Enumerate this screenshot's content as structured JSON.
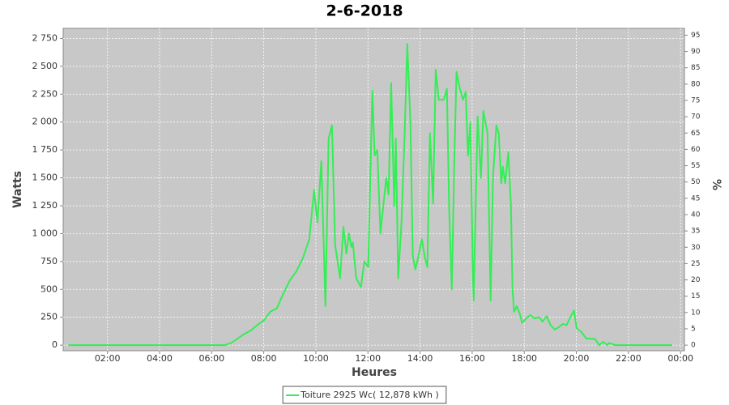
{
  "chart_data": {
    "type": "line",
    "title": "2-6-2018",
    "x_label": "Heures",
    "y_label": "Watts",
    "y2_label": "%",
    "x": [
      0.5,
      6.5,
      6.75,
      7.0,
      7.25,
      7.5,
      7.75,
      8.0,
      8.25,
      8.5,
      8.75,
      9.0,
      9.25,
      9.5,
      9.75,
      9.93,
      10.06,
      10.21,
      10.37,
      10.49,
      10.62,
      10.74,
      10.93,
      11.06,
      11.17,
      11.27,
      11.36,
      11.42,
      11.55,
      11.73,
      11.86,
      12.01,
      12.17,
      12.26,
      12.36,
      12.48,
      12.7,
      12.79,
      12.89,
      13.01,
      13.07,
      13.16,
      13.29,
      13.41,
      13.51,
      13.63,
      13.72,
      13.82,
      13.94,
      14.07,
      14.19,
      14.28,
      14.38,
      14.5,
      14.6,
      14.72,
      14.91,
      15.03,
      15.12,
      15.22,
      15.31,
      15.4,
      15.53,
      15.65,
      15.75,
      15.84,
      15.93,
      16.03,
      16.06,
      16.15,
      16.21,
      16.34,
      16.43,
      16.59,
      16.71,
      16.8,
      16.93,
      17.02,
      17.12,
      17.18,
      17.27,
      17.39,
      17.49,
      17.55,
      17.61,
      17.71,
      17.83,
      17.92,
      18.08,
      18.23,
      18.39,
      18.58,
      18.7,
      18.86,
      19.01,
      19.17,
      19.32,
      19.48,
      19.63,
      19.79,
      19.91,
      20.01,
      20.19,
      20.38,
      20.72,
      20.88,
      21.03,
      21.19,
      21.25,
      21.5,
      23.68
    ],
    "series": [
      {
        "name": "Toiture 2925 Wc( 12,878 kWh )",
        "color": "#33ee55",
        "values": [
          0,
          0,
          20,
          60,
          100,
          130,
          180,
          220,
          300,
          330,
          460,
          580,
          660,
          780,
          950,
          1390,
          1100,
          1650,
          350,
          1850,
          1970,
          900,
          600,
          1060,
          820,
          1000,
          880,
          920,
          600,
          520,
          750,
          700,
          2280,
          1700,
          1750,
          1000,
          1500,
          1350,
          2350,
          1250,
          1850,
          600,
          1100,
          1900,
          2700,
          2000,
          800,
          680,
          800,
          950,
          780,
          700,
          1900,
          1270,
          2470,
          2200,
          2200,
          2300,
          1200,
          500,
          1600,
          2450,
          2300,
          2200,
          2270,
          1700,
          2000,
          600,
          400,
          1400,
          2050,
          1500,
          2100,
          1900,
          400,
          1500,
          1970,
          1900,
          1450,
          1600,
          1450,
          1730,
          1250,
          500,
          300,
          350,
          280,
          200,
          240,
          270,
          240,
          250,
          210,
          260,
          180,
          140,
          160,
          190,
          180,
          260,
          310,
          150,
          120,
          60,
          55,
          0,
          30,
          0,
          20,
          0,
          0
        ]
      }
    ],
    "xlim": [
      0.3,
      24.15
    ],
    "xticks": [
      {
        "value": 2,
        "label": "02:00"
      },
      {
        "value": 4,
        "label": "04:00"
      },
      {
        "value": 6,
        "label": "06:00"
      },
      {
        "value": 8,
        "label": "08:00"
      },
      {
        "value": 10,
        "label": "10:00"
      },
      {
        "value": 12,
        "label": "12:00"
      },
      {
        "value": 14,
        "label": "14:00"
      },
      {
        "value": 16,
        "label": "16:00"
      },
      {
        "value": 18,
        "label": "18:00"
      },
      {
        "value": 20,
        "label": "20:00"
      },
      {
        "value": 22,
        "label": "22:00"
      },
      {
        "value": 24,
        "label": "00:00"
      }
    ],
    "ylim": [
      -50,
      2840
    ],
    "yticks": [
      0,
      250,
      500,
      750,
      {
        "value": 1000,
        "label": "1 000"
      },
      {
        "value": 1250,
        "label": "1 250"
      },
      {
        "value": 1500,
        "label": "1 500"
      },
      {
        "value": 1750,
        "label": "1 750"
      },
      {
        "value": 2000,
        "label": "2 000"
      },
      {
        "value": 2250,
        "label": "2 250"
      },
      {
        "value": 2500,
        "label": "2 500"
      },
      {
        "value": 2750,
        "label": "2 750"
      }
    ],
    "y2lim": [
      -1.71,
      97.09
    ],
    "y2ticks": [
      0,
      5,
      10,
      15,
      20,
      25,
      30,
      35,
      40,
      45,
      50,
      55,
      60,
      65,
      70,
      75,
      80,
      85,
      90,
      95
    ],
    "grid": true,
    "legend": "bottom"
  }
}
